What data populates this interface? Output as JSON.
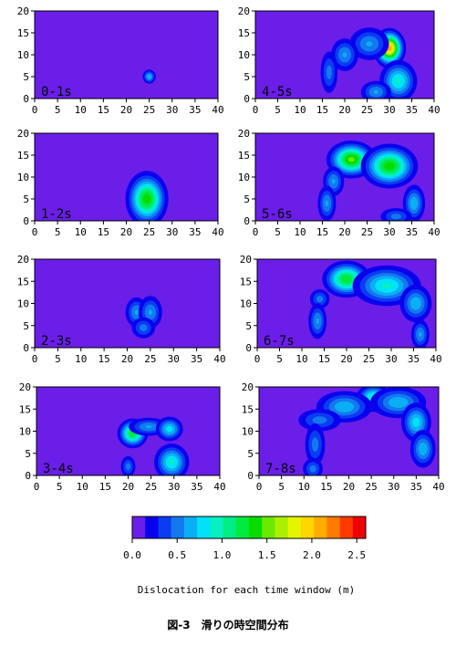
{
  "figure_caption": "図-3　滑りの時空間分布",
  "colorbar": {
    "label": "Dislocation for each time window (m)",
    "tick_labels": [
      "0.0",
      "0.5",
      "1.0",
      "1.5",
      "2.0",
      "2.5"
    ],
    "tick_values": [
      0.0,
      0.5,
      1.0,
      1.5,
      2.0,
      2.5
    ],
    "range": [
      0.0,
      2.6
    ],
    "colors": [
      "#6a1ee8",
      "#0a00ee",
      "#0a3cf2",
      "#1478f0",
      "#0aaef4",
      "#00e2f8",
      "#06f0c2",
      "#00ec84",
      "#00ea40",
      "#06dc00",
      "#6aea00",
      "#acf000",
      "#e6f400",
      "#ffd600",
      "#ffac00",
      "#ff7a00",
      "#ff3a00",
      "#f20000"
    ]
  },
  "chart_data": [
    {
      "type": "heatmap",
      "label": "0-1s",
      "xlim": [
        0,
        40
      ],
      "ylim": [
        0,
        20
      ],
      "xticks": [
        0,
        5,
        10,
        15,
        20,
        25,
        30,
        35,
        40
      ],
      "yticks": [
        0,
        5,
        10,
        15,
        20
      ],
      "slip_patches": [
        {
          "x": 25,
          "y": 5,
          "sx": 0.8,
          "sy": 0.9,
          "value": 0.7
        }
      ]
    },
    {
      "type": "heatmap",
      "label": "1-2s",
      "xlim": [
        0,
        40
      ],
      "ylim": [
        0,
        20
      ],
      "xticks": [
        0,
        5,
        10,
        15,
        20,
        25,
        30,
        35,
        40
      ],
      "yticks": [
        0,
        5,
        10,
        15,
        20
      ],
      "slip_patches": [
        {
          "x": 24.5,
          "y": 5,
          "sx": 2.2,
          "sy": 3,
          "value": 1.4
        }
      ]
    },
    {
      "type": "heatmap",
      "label": "2-3s",
      "xlim": [
        0,
        40
      ],
      "ylim": [
        0,
        20
      ],
      "xticks": [
        0,
        5,
        10,
        15,
        20,
        25,
        30,
        35,
        40
      ],
      "yticks": [
        0,
        5,
        10,
        15,
        20
      ],
      "slip_patches": [
        {
          "x": 22,
          "y": 8,
          "sx": 1.4,
          "sy": 2,
          "value": 0.6
        },
        {
          "x": 25,
          "y": 8,
          "sx": 1.5,
          "sy": 2.2,
          "value": 0.6
        },
        {
          "x": 23.5,
          "y": 4.5,
          "sx": 1.6,
          "sy": 1.5,
          "value": 0.5
        }
      ]
    },
    {
      "type": "heatmap",
      "label": "3-4s",
      "xlim": [
        0,
        40
      ],
      "ylim": [
        0,
        20
      ],
      "xticks": [
        0,
        5,
        10,
        15,
        20,
        25,
        30,
        35,
        40
      ],
      "yticks": [
        0,
        5,
        10,
        15,
        20
      ],
      "slip_patches": [
        {
          "x": 21,
          "y": 9.5,
          "sx": 1.6,
          "sy": 1.6,
          "value": 1.3
        },
        {
          "x": 24.5,
          "y": 11,
          "sx": 2.6,
          "sy": 1.2,
          "value": 0.6
        },
        {
          "x": 29,
          "y": 10.5,
          "sx": 1.6,
          "sy": 1.5,
          "value": 0.8
        },
        {
          "x": 29.5,
          "y": 3,
          "sx": 2,
          "sy": 2.2,
          "value": 0.9
        },
        {
          "x": 20,
          "y": 2,
          "sx": 1,
          "sy": 1.5,
          "value": 0.5
        }
      ]
    },
    {
      "type": "heatmap",
      "label": "4-5s",
      "xlim": [
        0,
        40
      ],
      "ylim": [
        0,
        20
      ],
      "xticks": [
        0,
        5,
        10,
        15,
        20,
        25,
        30,
        35,
        40
      ],
      "yticks": [
        0,
        5,
        10,
        15,
        20
      ],
      "slip_patches": [
        {
          "x": 30,
          "y": 11.5,
          "sx": 1.6,
          "sy": 2,
          "value": 2.1
        },
        {
          "x": 25.5,
          "y": 12.5,
          "sx": 2.6,
          "sy": 2.2,
          "value": 0.6
        },
        {
          "x": 20,
          "y": 10,
          "sx": 1.8,
          "sy": 2.2,
          "value": 0.6
        },
        {
          "x": 16.5,
          "y": 6,
          "sx": 1.2,
          "sy": 3,
          "value": 0.5
        },
        {
          "x": 32,
          "y": 4,
          "sx": 2.2,
          "sy": 2.5,
          "value": 0.9
        },
        {
          "x": 27,
          "y": 1.5,
          "sx": 2,
          "sy": 1.5,
          "value": 0.6
        }
      ]
    },
    {
      "type": "heatmap",
      "label": "5-6s",
      "xlim": [
        0,
        40
      ],
      "ylim": [
        0,
        20
      ],
      "xticks": [
        0,
        5,
        10,
        15,
        20,
        25,
        30,
        35,
        40
      ],
      "yticks": [
        0,
        5,
        10,
        15,
        20
      ],
      "slip_patches": [
        {
          "x": 21.5,
          "y": 14,
          "sx": 2.6,
          "sy": 2,
          "value": 1.5
        },
        {
          "x": 30,
          "y": 12.5,
          "sx": 3,
          "sy": 2.4,
          "value": 1.4
        },
        {
          "x": 17.5,
          "y": 9,
          "sx": 1.4,
          "sy": 2,
          "value": 0.6
        },
        {
          "x": 16,
          "y": 4,
          "sx": 1.2,
          "sy": 2.4,
          "value": 0.6
        },
        {
          "x": 35.5,
          "y": 4,
          "sx": 1.4,
          "sy": 2.4,
          "value": 0.7
        },
        {
          "x": 31.5,
          "y": 1,
          "sx": 2.2,
          "sy": 1.2,
          "value": 0.5
        }
      ]
    },
    {
      "type": "heatmap",
      "label": "6-7s",
      "xlim": [
        0,
        40
      ],
      "ylim": [
        0,
        20
      ],
      "xticks": [
        0,
        5,
        10,
        15,
        20,
        25,
        30,
        35,
        40
      ],
      "yticks": [
        0,
        5,
        10,
        15,
        20
      ],
      "slip_patches": [
        {
          "x": 20,
          "y": 15.5,
          "sx": 2.6,
          "sy": 2,
          "value": 1.3
        },
        {
          "x": 29,
          "y": 14,
          "sx": 4,
          "sy": 2.4,
          "value": 0.9
        },
        {
          "x": 35.5,
          "y": 10,
          "sx": 2,
          "sy": 2.4,
          "value": 0.7
        },
        {
          "x": 14,
          "y": 11,
          "sx": 1.4,
          "sy": 1.4,
          "value": 0.5
        },
        {
          "x": 13.5,
          "y": 6,
          "sx": 1.2,
          "sy": 2.4,
          "value": 0.6
        },
        {
          "x": 36.5,
          "y": 3,
          "sx": 1.2,
          "sy": 2,
          "value": 0.6
        }
      ]
    },
    {
      "type": "heatmap",
      "label": "7-8s",
      "xlim": [
        0,
        40
      ],
      "ylim": [
        0,
        20
      ],
      "xticks": [
        0,
        5,
        10,
        15,
        20,
        25,
        30,
        35,
        40
      ],
      "yticks": [
        0,
        5,
        10,
        15,
        20
      ],
      "slip_patches": [
        {
          "x": 25.5,
          "y": 17.5,
          "sx": 2,
          "sy": 1.6,
          "value": 1.0
        },
        {
          "x": 19,
          "y": 15.5,
          "sx": 3.5,
          "sy": 2,
          "value": 0.7
        },
        {
          "x": 31,
          "y": 16.5,
          "sx": 3.5,
          "sy": 2,
          "value": 0.7
        },
        {
          "x": 35,
          "y": 12,
          "sx": 1.8,
          "sy": 2.4,
          "value": 0.8
        },
        {
          "x": 36.5,
          "y": 6,
          "sx": 1.6,
          "sy": 2.4,
          "value": 0.7
        },
        {
          "x": 13.5,
          "y": 12.5,
          "sx": 3,
          "sy": 1.6,
          "value": 0.5
        },
        {
          "x": 12.5,
          "y": 7,
          "sx": 1.4,
          "sy": 3,
          "value": 0.5
        },
        {
          "x": 12,
          "y": 1.5,
          "sx": 1.4,
          "sy": 1.5,
          "value": 0.5
        }
      ]
    }
  ]
}
